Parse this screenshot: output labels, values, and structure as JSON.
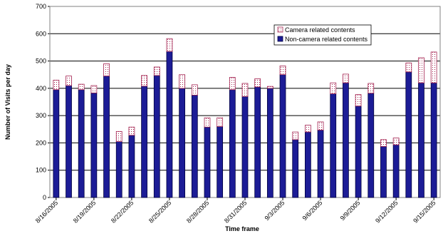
{
  "chart_data": {
    "type": "stacked_bar",
    "x_label": "Time frame",
    "y_label": "Number of Visits per day",
    "categories": [
      "8/16/2005",
      null,
      null,
      "8/19/2005",
      null,
      null,
      "8/22/2005",
      null,
      null,
      "8/25/2005",
      null,
      null,
      "8/28/2005",
      null,
      null,
      "8/31/2005",
      null,
      null,
      "9/3/2005",
      null,
      null,
      "9/6/2005",
      null,
      null,
      "9/9/2005",
      null,
      null,
      "9/12/2005",
      null,
      null,
      "9/15/2005"
    ],
    "series": [
      {
        "name": "Non-camera related contents",
        "color": "#1c1c96",
        "values": [
          395,
          410,
          395,
          383,
          445,
          205,
          228,
          408,
          447,
          535,
          400,
          375,
          258,
          260,
          395,
          370,
          405,
          400,
          450,
          212,
          240,
          247,
          380,
          420,
          335,
          382,
          187,
          193,
          460,
          420,
          420
        ]
      },
      {
        "name": "Camera related contents",
        "color": "#a3214f",
        "values": [
          35,
          35,
          20,
          27,
          45,
          37,
          30,
          39,
          31,
          47,
          50,
          38,
          34,
          32,
          45,
          48,
          30,
          7,
          32,
          28,
          25,
          30,
          40,
          32,
          42,
          36,
          25,
          25,
          33,
          92,
          113
        ]
      }
    ],
    "ylim": [
      0,
      700
    ],
    "yticks": [
      0,
      100,
      200,
      300,
      400,
      500,
      600,
      700
    ],
    "grid": true
  }
}
